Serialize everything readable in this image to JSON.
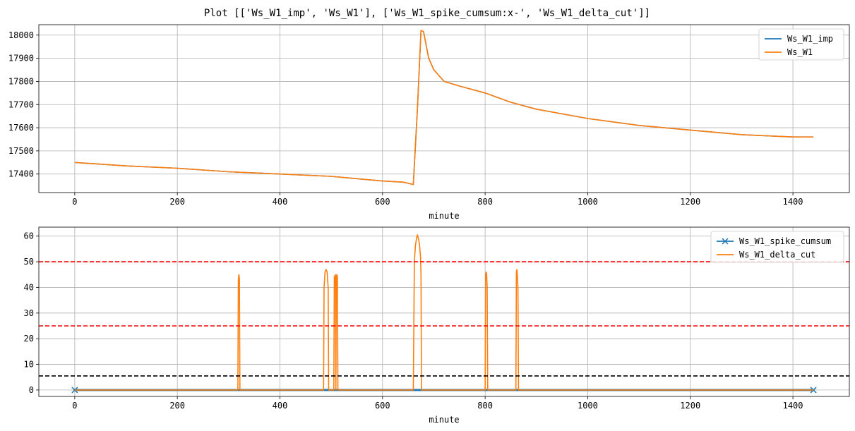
{
  "figure": {
    "title": "Plot [['Ws_W1_imp', 'Ws_W1'], ['Ws_W1_spike_cumsum:x-', 'Ws_W1_delta_cut']]"
  },
  "chart_data": [
    {
      "type": "line",
      "xlabel": "minute",
      "ylabel": "",
      "xlim": [
        -70,
        1510
      ],
      "ylim": [
        17320,
        18045
      ],
      "x_ticks": [
        0,
        200,
        400,
        600,
        800,
        1000,
        1200,
        1400
      ],
      "x_tick_labels": [
        "0",
        "200",
        "400",
        "600",
        "800",
        "1000",
        "1200",
        "1400"
      ],
      "y_ticks": [
        17400,
        17500,
        17600,
        17700,
        17800,
        17900,
        18000
      ],
      "y_tick_labels": [
        "17400",
        "17500",
        "17600",
        "17700",
        "17800",
        "17900",
        "18000"
      ],
      "grid": true,
      "legend_position": "top-right",
      "series": [
        {
          "name": "Ws_W1_imp",
          "color": "#1f77b4",
          "x": [
            0,
            100,
            200,
            300,
            400,
            500,
            550,
            600,
            640,
            660,
            668,
            675,
            680,
            690,
            700,
            720,
            750,
            800,
            850,
            900,
            1000,
            1100,
            1200,
            1300,
            1400,
            1440
          ],
          "y": [
            17450,
            17435,
            17425,
            17410,
            17400,
            17390,
            17380,
            17370,
            17365,
            17355,
            17680,
            18020,
            18015,
            17900,
            17850,
            17800,
            17780,
            17750,
            17710,
            17680,
            17640,
            17610,
            17590,
            17570,
            17560,
            17560
          ]
        },
        {
          "name": "Ws_W1",
          "color": "#ff7f0e",
          "x": [
            0,
            100,
            200,
            300,
            400,
            500,
            550,
            600,
            640,
            660,
            668,
            675,
            680,
            690,
            700,
            720,
            750,
            800,
            850,
            900,
            1000,
            1100,
            1200,
            1300,
            1400,
            1440
          ],
          "y": [
            17450,
            17435,
            17425,
            17410,
            17400,
            17390,
            17380,
            17370,
            17365,
            17355,
            17680,
            18020,
            18015,
            17900,
            17850,
            17800,
            17780,
            17750,
            17710,
            17680,
            17640,
            17610,
            17590,
            17570,
            17560,
            17560
          ]
        }
      ],
      "hlines": []
    },
    {
      "type": "line",
      "xlabel": "minute",
      "ylabel": "",
      "xlim": [
        -70,
        1510
      ],
      "ylim": [
        -2.5,
        63.5
      ],
      "x_ticks": [
        0,
        200,
        400,
        600,
        800,
        1000,
        1200,
        1400
      ],
      "x_tick_labels": [
        "0",
        "200",
        "400",
        "600",
        "800",
        "1000",
        "1200",
        "1400"
      ],
      "y_ticks": [
        0,
        10,
        20,
        30,
        40,
        50,
        60
      ],
      "y_tick_labels": [
        "0",
        "10",
        "20",
        "30",
        "40",
        "50",
        "60"
      ],
      "grid": true,
      "legend_position": "top-right",
      "series": [
        {
          "name": "Ws_W1_spike_cumsum",
          "color": "#1f77b4",
          "marker": "x",
          "x": [
            0,
            1440
          ],
          "y": [
            0,
            0
          ]
        },
        {
          "name": "Ws_W1_delta_cut",
          "color": "#ff7f0e",
          "x": [
            0,
            318,
            319,
            320,
            321,
            322,
            485,
            486,
            488,
            490,
            492,
            494,
            495,
            505,
            506,
            508,
            509,
            510,
            511,
            512,
            513,
            514,
            660,
            662,
            664,
            666,
            668,
            670,
            672,
            674,
            675,
            676,
            800,
            801,
            802,
            803,
            804,
            805,
            860,
            861,
            862,
            863,
            864,
            865,
            1440
          ],
          "y": [
            0,
            0,
            43,
            45,
            43,
            0,
            0,
            40,
            46,
            47,
            46,
            40,
            0,
            0,
            44,
            45,
            0,
            44,
            45,
            44,
            0,
            0,
            0,
            50,
            56,
            59,
            60.5,
            59,
            57,
            52,
            45,
            0,
            0,
            45,
            46,
            45,
            40,
            0,
            0,
            46,
            47,
            44,
            40,
            0,
            0
          ]
        }
      ],
      "hlines": [
        {
          "y": 50,
          "color": "#ff0000"
        },
        {
          "y": 25,
          "color": "#ff0000"
        },
        {
          "y": 5.5,
          "color": "#000000"
        }
      ]
    }
  ]
}
